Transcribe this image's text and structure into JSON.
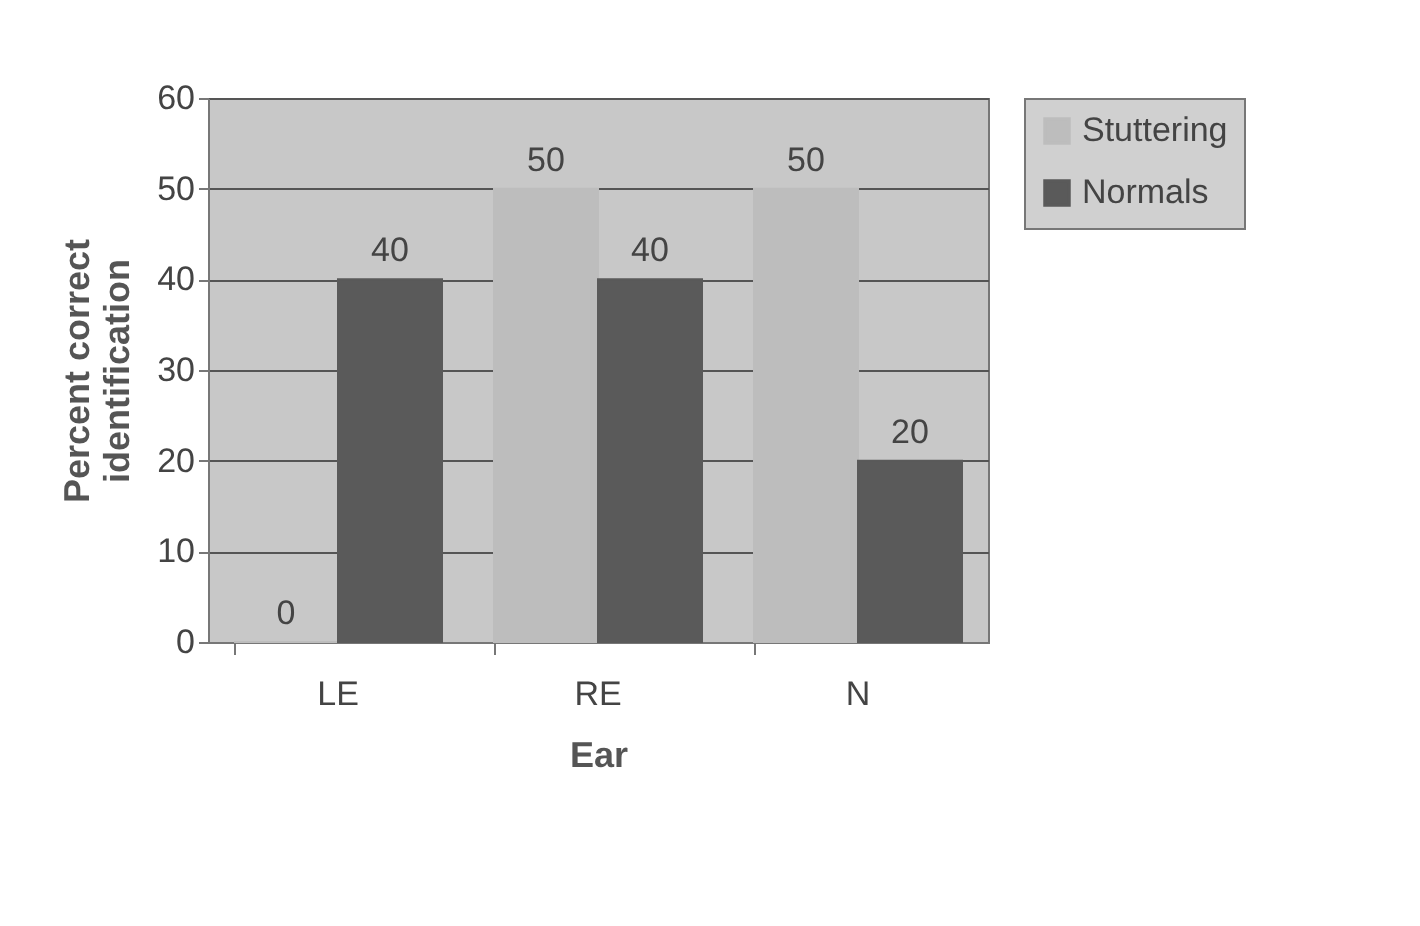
{
  "chart_data": {
    "type": "bar",
    "xlabel": "Ear",
    "ylabel": "Percent correct identification",
    "categories": [
      "LE",
      "RE",
      "N"
    ],
    "series": [
      {
        "name": "Stuttering",
        "color": "#bdbdbd",
        "values": [
          0,
          50,
          50
        ]
      },
      {
        "name": "Normals",
        "color": "#5a5a5a",
        "values": [
          40,
          40,
          20
        ]
      }
    ],
    "ylim": [
      0,
      60
    ],
    "yticks": [
      0,
      10,
      20,
      30,
      40,
      50,
      60
    ],
    "grid": "y",
    "legend": "right",
    "data_labels": true
  }
}
